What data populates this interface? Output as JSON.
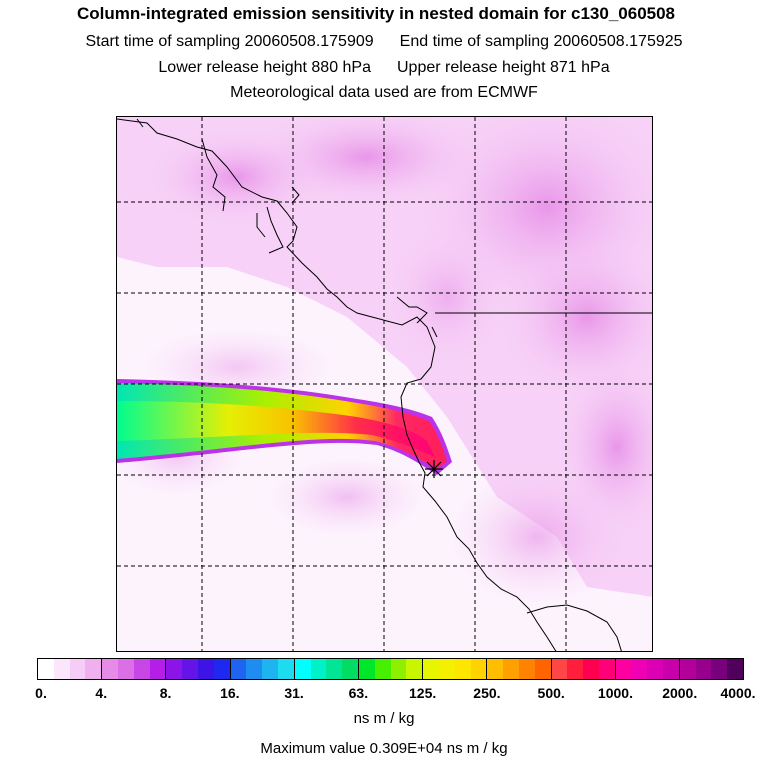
{
  "header": {
    "title": "Column-integrated emission sensitivity in nested domain for c130_060508",
    "start_label": "Start time of sampling 20060508.175909",
    "end_label": "End time of sampling 20060508.175925",
    "lower_label": "Lower release height  880 hPa",
    "upper_label": "Upper release height  871 hPa",
    "met_label": "Meteorological data used are from ECMWF"
  },
  "colorbar": {
    "tick_labels": [
      "0.",
      "4.",
      "8.",
      "16.",
      "31.",
      "63.",
      "125.",
      "250.",
      "500.",
      "1000.",
      "2000.",
      "4000."
    ],
    "units": "ns m / kg",
    "segments": [
      [
        "#ffffff",
        "#fbe6fb",
        "#f6cdf6",
        "#f0b0f0"
      ],
      [
        "#e68ce6",
        "#dc6ee6",
        "#c846e6",
        "#b41ee6"
      ],
      [
        "#8c14e6",
        "#6414e6",
        "#3c14e6",
        "#1e28f0"
      ],
      [
        "#1e64f0",
        "#1e8cf0",
        "#1eb4f0",
        "#1edcf0"
      ],
      [
        "#00ffff",
        "#00f0c8",
        "#00e696",
        "#00dc64"
      ],
      [
        "#00e628",
        "#46f000",
        "#8cf000",
        "#c8f500"
      ],
      [
        "#e6f500",
        "#f5f000",
        "#ffe600",
        "#ffd200"
      ],
      [
        "#ffbe00",
        "#ffa000",
        "#ff8200",
        "#ff6400"
      ],
      [
        "#ff4646",
        "#ff1e3c",
        "#ff0050",
        "#ff0078"
      ],
      [
        "#ff00a0",
        "#f000b4",
        "#dc00b4",
        "#c800aa"
      ],
      [
        "#b4009b",
        "#96008c",
        "#78007d",
        "#50005a"
      ]
    ]
  },
  "max_value_label": "Maximum value  0.309E+04 ns m / kg",
  "map": {
    "gridlines": "dashed",
    "release_marker": "star-icon",
    "colors": {
      "plume_green": "#00e68c",
      "plume_yellow": "#ffe600",
      "plume_red": "#ff1e5a",
      "background_sensitivity": "#f0b0f0"
    }
  }
}
